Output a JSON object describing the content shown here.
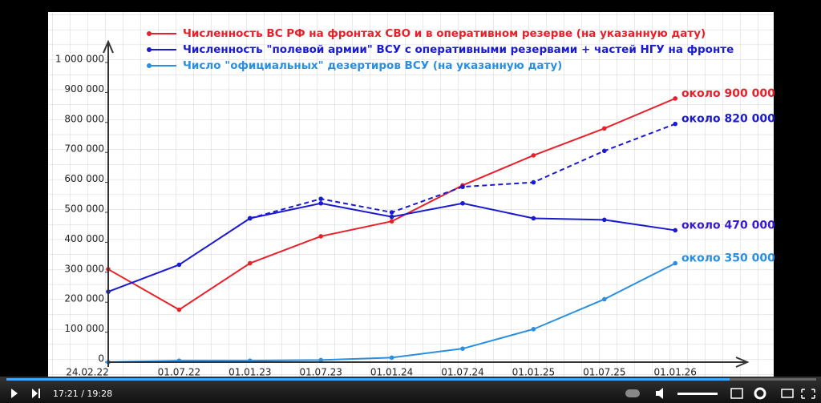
{
  "chart_data": {
    "type": "line",
    "categories": [
      "24.02.22",
      "01.07.22",
      "01.01.23",
      "01.07.23",
      "01.01.24",
      "01.07.24",
      "01.01.25",
      "01.07.25",
      "01.01.26"
    ],
    "series": [
      {
        "name": "Численность ВС РФ на фронтах СВО и в оперативном резерве (на указанную дату)",
        "color": "#e8202a",
        "values": [
          310000,
          175000,
          330000,
          420000,
          470000,
          590000,
          690000,
          780000,
          880000
        ]
      },
      {
        "color": "#1a1ad0",
        "dash": true,
        "values": [
          null,
          null,
          480000,
          545000,
          500000,
          585000,
          600000,
          705000,
          795000
        ]
      },
      {
        "name": "Численность \"полевой армии\" ВСУ с оперативными резервами + частей НГУ на фронте",
        "color": "#1a1ad0",
        "values": [
          235000,
          325000,
          480000,
          530000,
          485000,
          530000,
          480000,
          475000,
          440000
        ]
      },
      {
        "name": "Число \"официальных\" дезертиров ВСУ (на указанную дату)",
        "color": "#2a8fe0",
        "values": [
          0,
          5000,
          5000,
          7000,
          15000,
          45000,
          110000,
          210000,
          330000
        ]
      }
    ],
    "annotations": [
      {
        "text": "около 900 000",
        "color": "#e8202a"
      },
      {
        "text": "около 820 000",
        "color": "#1a1ad0"
      },
      {
        "text": "около 470 000",
        "color": "#3a1ad0"
      },
      {
        "text": "около 350 000",
        "color": "#2a8fe0"
      }
    ],
    "ylim": [
      0,
      1000000
    ],
    "yticks": [
      0,
      {
        "value": 100000,
        "label": "100 000"
      },
      {
        "value": 200000,
        "label": "200 000"
      },
      {
        "value": 300000,
        "label": "300 000"
      },
      {
        "value": 400000,
        "label": "400 000"
      },
      {
        "value": 500000,
        "label": "500 000"
      },
      {
        "value": 600000,
        "label": "600 000"
      },
      {
        "value": 700000,
        "label": "700 000"
      },
      {
        "value": 800000,
        "label": "800 000"
      },
      {
        "value": 900000,
        "label": "900 000"
      },
      {
        "value": 1000000,
        "label": "1 000 000"
      }
    ]
  },
  "player": {
    "time": "17:21 / 19:28"
  }
}
